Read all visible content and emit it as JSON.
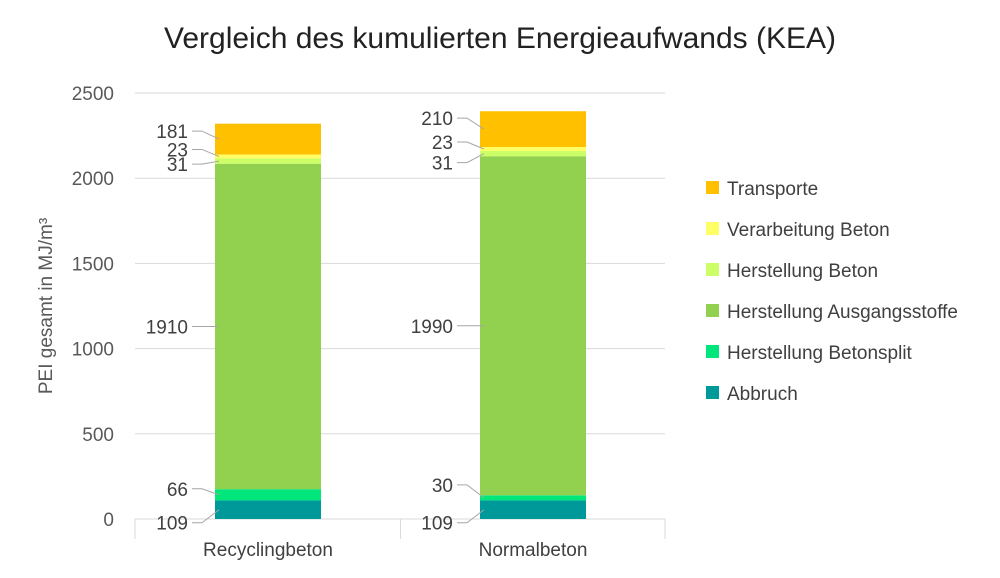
{
  "chart_data": {
    "type": "bar",
    "stacked": true,
    "title": "Vergleich des kumulierten Energieaufwands (KEA)",
    "ylabel": "PEI gesamt in MJ/m³",
    "xlabel": "",
    "ylim": [
      0,
      2500
    ],
    "yticks": [
      "0",
      "500",
      "1000",
      "1500",
      "2000",
      "2500"
    ],
    "grid": true,
    "legend_position": "right",
    "categories": [
      "Recyclingbeton",
      "Normalbeton"
    ],
    "series": [
      {
        "name": "Abbruch",
        "color": "#009999",
        "values": [
          109,
          109
        ]
      },
      {
        "name": "Herstellung Betonsplit",
        "color": "#00E67A",
        "values": [
          66,
          30
        ]
      },
      {
        "name": "Herstellung Ausgangsstoffe",
        "color": "#92D050",
        "values": [
          1910,
          1990
        ]
      },
      {
        "name": "Herstellung Beton",
        "color": "#CCFF66",
        "values": [
          31,
          31
        ]
      },
      {
        "name": "Verarbeitung Beton",
        "color": "#FFFF66",
        "values": [
          23,
          23
        ]
      },
      {
        "name": "Transporte",
        "color": "#FFC000",
        "values": [
          181,
          210
        ]
      }
    ],
    "data_labels": [
      [
        "109",
        "66",
        "1910",
        "31",
        "23",
        "181"
      ],
      [
        "109",
        "30",
        "1990",
        "31",
        "23",
        "210"
      ]
    ]
  }
}
